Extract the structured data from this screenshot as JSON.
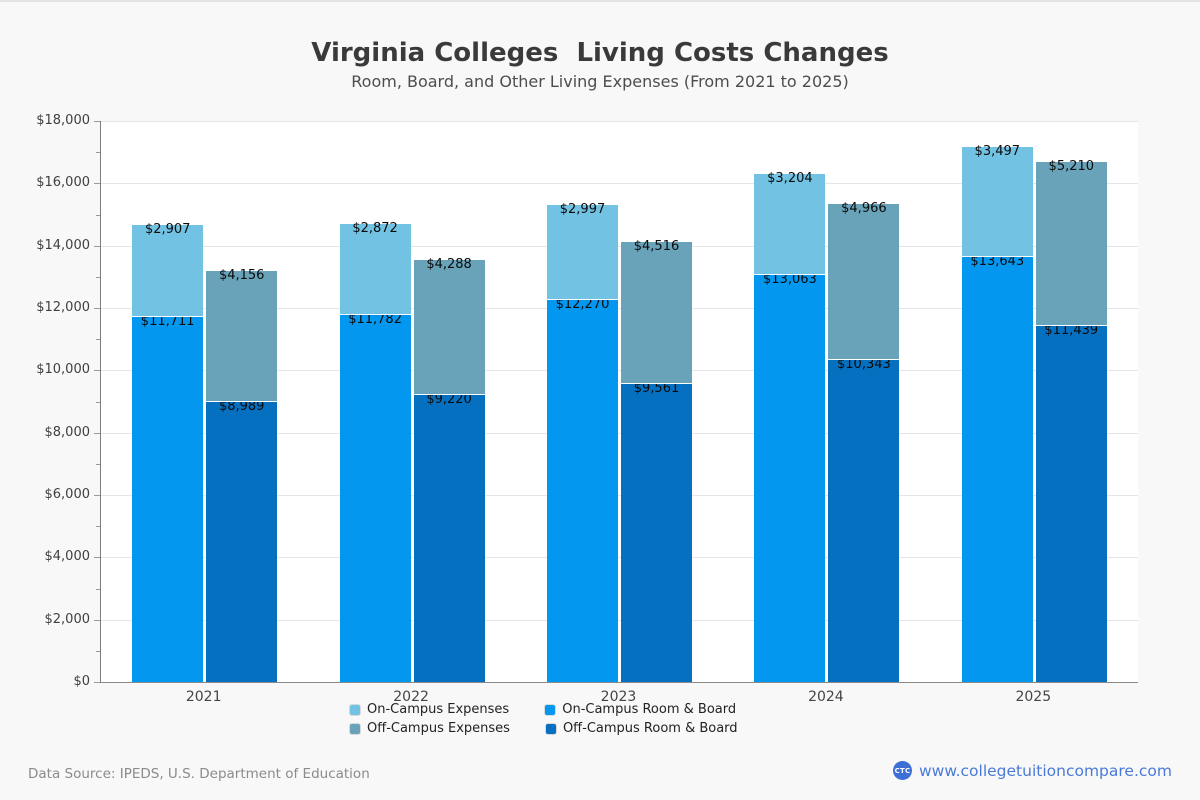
{
  "chart_data": {
    "type": "bar",
    "stacked": true,
    "title": "Virginia Colleges  Living Costs Changes",
    "subtitle": "Room, Board, and Other Living Expenses (From 2021 to 2025)",
    "categories": [
      "2021",
      "2022",
      "2023",
      "2024",
      "2025"
    ],
    "ylim": [
      0,
      18000
    ],
    "ytick_step": 2000,
    "yminor_step": 1000,
    "ytick_prefix": "$",
    "grid": true,
    "legend_position": "bottom",
    "series": [
      {
        "name": "On-Campus Expenses",
        "stack": "on-campus",
        "color": "#72C2E3",
        "values": [
          2907,
          2872,
          2997,
          3204,
          3497
        ]
      },
      {
        "name": "On-Campus Room & Board",
        "stack": "on-campus",
        "color": "#0397F0",
        "values": [
          11711,
          11782,
          12270,
          13063,
          13643
        ]
      },
      {
        "name": "Off-Campus Expenses",
        "stack": "off-campus",
        "color": "#68A3B9",
        "values": [
          4156,
          4288,
          4516,
          4966,
          5210
        ]
      },
      {
        "name": "Off-Campus Room & Board",
        "stack": "off-campus",
        "color": "#0670C0",
        "values": [
          8989,
          9220,
          9561,
          10343,
          11439
        ]
      }
    ],
    "stack_totals": {
      "on-campus": [
        14618,
        14654,
        15267,
        16267,
        17140
      ],
      "off-campus": [
        13145,
        13508,
        14077,
        15309,
        16649
      ]
    }
  },
  "footer": {
    "source": "Data Source: IPEDS, U.S. Department of Education",
    "logo_text": "CTC",
    "website": "www.collegetuitioncompare.com"
  },
  "colors": {
    "page_background": "#f8f8f8",
    "plot_background": "#ffffff",
    "gridline": "#e6e6e6",
    "brand_blue": "#4a7ad8"
  }
}
